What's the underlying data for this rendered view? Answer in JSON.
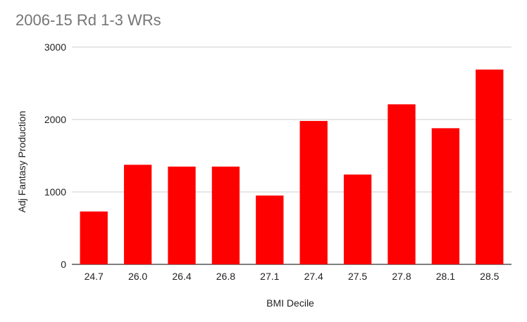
{
  "chart_data": {
    "type": "bar",
    "title": "2006-15 Rd 1-3 WRs",
    "xlabel": "BMI Decile",
    "ylabel": "Adj Fantasy Production",
    "categories": [
      "24.7",
      "26.0",
      "26.4",
      "26.8",
      "27.1",
      "27.4",
      "27.5",
      "27.8",
      "28.1",
      "28.5"
    ],
    "values": [
      730,
      1375,
      1350,
      1350,
      950,
      1980,
      1240,
      2210,
      1880,
      2690
    ],
    "ylim": [
      0,
      3000
    ],
    "yticks": [
      "0",
      "1000",
      "2000",
      "3000"
    ],
    "grid": true,
    "legend": "none",
    "bar_color": "#ff0000",
    "grid_color": "#cccccc"
  }
}
